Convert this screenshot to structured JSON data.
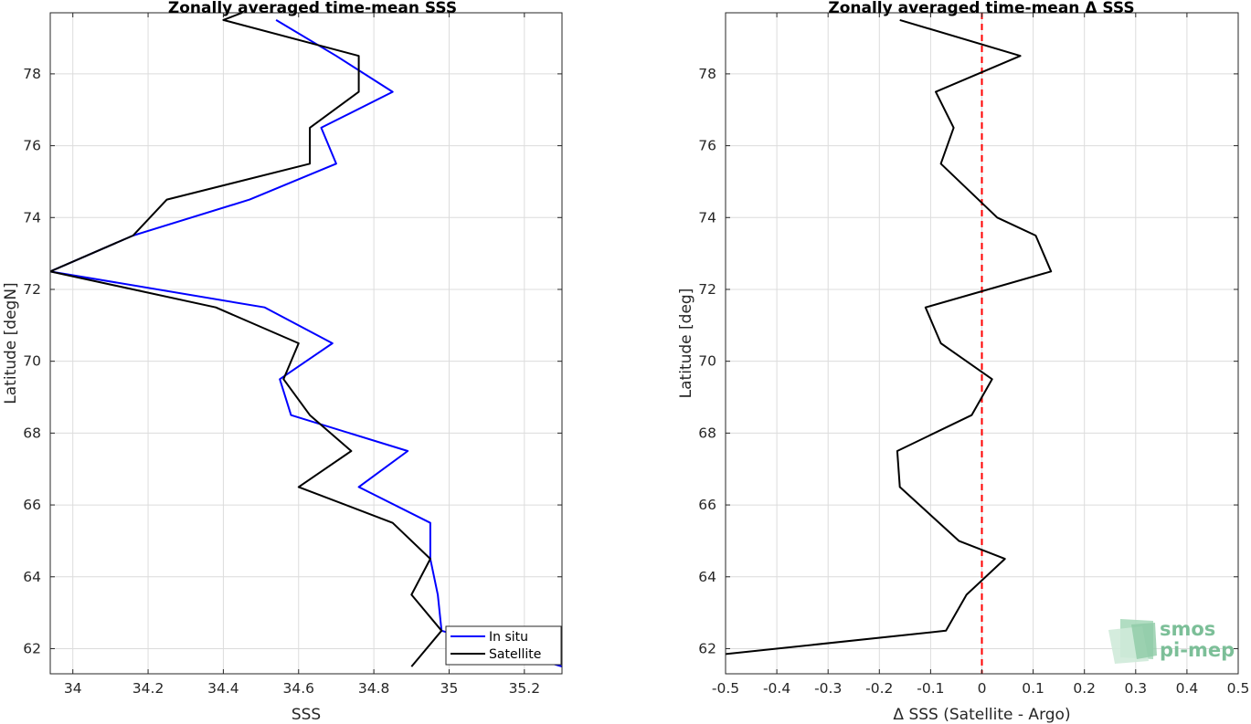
{
  "chart_data": [
    {
      "type": "line",
      "title": "Zonally averaged time-mean SSS",
      "xlabel": "SSS",
      "ylabel": "Latitude [degN]",
      "xlim": [
        33.94,
        35.3
      ],
      "ylim": [
        61.3,
        79.7
      ],
      "xticks": [
        34,
        34.2,
        34.4,
        34.6,
        34.8,
        35,
        35.2
      ],
      "xtick_labels": [
        "34",
        "34.2",
        "34.4",
        "34.6",
        "34.8",
        "35",
        "35.2"
      ],
      "yticks": [
        62,
        64,
        66,
        68,
        70,
        72,
        74,
        76,
        78
      ],
      "ytick_labels": [
        "62",
        "64",
        "66",
        "68",
        "70",
        "72",
        "74",
        "76",
        "78"
      ],
      "grid": true,
      "legend_position": "bottom-right",
      "series": [
        {
          "name": "In situ",
          "color": "#0000ff",
          "points": [
            [
              34.54,
              79.5
            ],
            [
              34.7,
              78.5
            ],
            [
              34.85,
              77.5
            ],
            [
              34.66,
              76.5
            ],
            [
              34.7,
              75.5
            ],
            [
              34.47,
              74.5
            ],
            [
              34.16,
              73.5
            ],
            [
              33.94,
              72.5
            ],
            [
              34.51,
              71.5
            ],
            [
              34.69,
              70.5
            ],
            [
              34.55,
              69.5
            ],
            [
              34.58,
              68.5
            ],
            [
              34.89,
              67.5
            ],
            [
              34.76,
              66.5
            ],
            [
              34.95,
              65.5
            ],
            [
              34.95,
              64.5
            ],
            [
              34.97,
              63.5
            ],
            [
              34.98,
              62.5
            ],
            [
              35.3,
              61.5
            ]
          ]
        },
        {
          "name": "Satellite",
          "color": "#000000",
          "points": [
            [
              34.45,
              79.7
            ],
            [
              34.4,
              79.5
            ],
            [
              34.76,
              78.5
            ],
            [
              34.76,
              77.5
            ],
            [
              34.63,
              76.5
            ],
            [
              34.63,
              75.5
            ],
            [
              34.25,
              74.5
            ],
            [
              34.16,
              73.5
            ],
            [
              33.94,
              72.5
            ],
            [
              34.38,
              71.5
            ],
            [
              34.6,
              70.5
            ],
            [
              34.56,
              69.5
            ],
            [
              34.63,
              68.5
            ],
            [
              34.74,
              67.5
            ],
            [
              34.6,
              66.5
            ],
            [
              34.85,
              65.5
            ],
            [
              34.95,
              64.5
            ],
            [
              34.9,
              63.5
            ],
            [
              34.98,
              62.5
            ],
            [
              34.9,
              61.5
            ]
          ]
        }
      ]
    },
    {
      "type": "line",
      "title": "Zonally averaged time-mean Δ SSS",
      "xlabel": "Δ SSS (Satellite - Argo)",
      "ylabel": "Latitude [deg]",
      "xlim": [
        -0.5,
        0.5
      ],
      "ylim": [
        61.3,
        79.7
      ],
      "xticks": [
        -0.5,
        -0.4,
        -0.3,
        -0.2,
        -0.1,
        0,
        0.1,
        0.2,
        0.3,
        0.4,
        0.5
      ],
      "xtick_labels": [
        "-0.5",
        "-0.4",
        "-0.3",
        "-0.2",
        "-0.1",
        "0",
        "0.1",
        "0.2",
        "0.3",
        "0.4",
        "0.5"
      ],
      "yticks": [
        62,
        64,
        66,
        68,
        70,
        72,
        74,
        76,
        78
      ],
      "ytick_labels": [
        "62",
        "64",
        "66",
        "68",
        "70",
        "72",
        "74",
        "76",
        "78"
      ],
      "grid": true,
      "reference_line": {
        "x": 0,
        "color": "#ff0000",
        "style": "dashed"
      },
      "series": [
        {
          "color": "#000000",
          "points": [
            [
              -0.16,
              79.5
            ],
            [
              0.075,
              78.5
            ],
            [
              -0.09,
              77.5
            ],
            [
              -0.055,
              76.5
            ],
            [
              -0.08,
              75.5
            ],
            [
              0.03,
              74.0
            ],
            [
              0.105,
              73.5
            ],
            [
              0.135,
              72.5
            ],
            [
              -0.11,
              71.5
            ],
            [
              -0.08,
              70.5
            ],
            [
              0.02,
              69.5
            ],
            [
              -0.02,
              68.5
            ],
            [
              -0.165,
              67.5
            ],
            [
              -0.16,
              66.5
            ],
            [
              -0.045,
              65.0
            ],
            [
              0.045,
              64.5
            ],
            [
              -0.03,
              63.5
            ],
            [
              -0.07,
              62.5
            ],
            [
              -0.5,
              61.85
            ]
          ]
        }
      ]
    }
  ],
  "logo": {
    "line1": "smos",
    "line2": "pi-mep"
  }
}
